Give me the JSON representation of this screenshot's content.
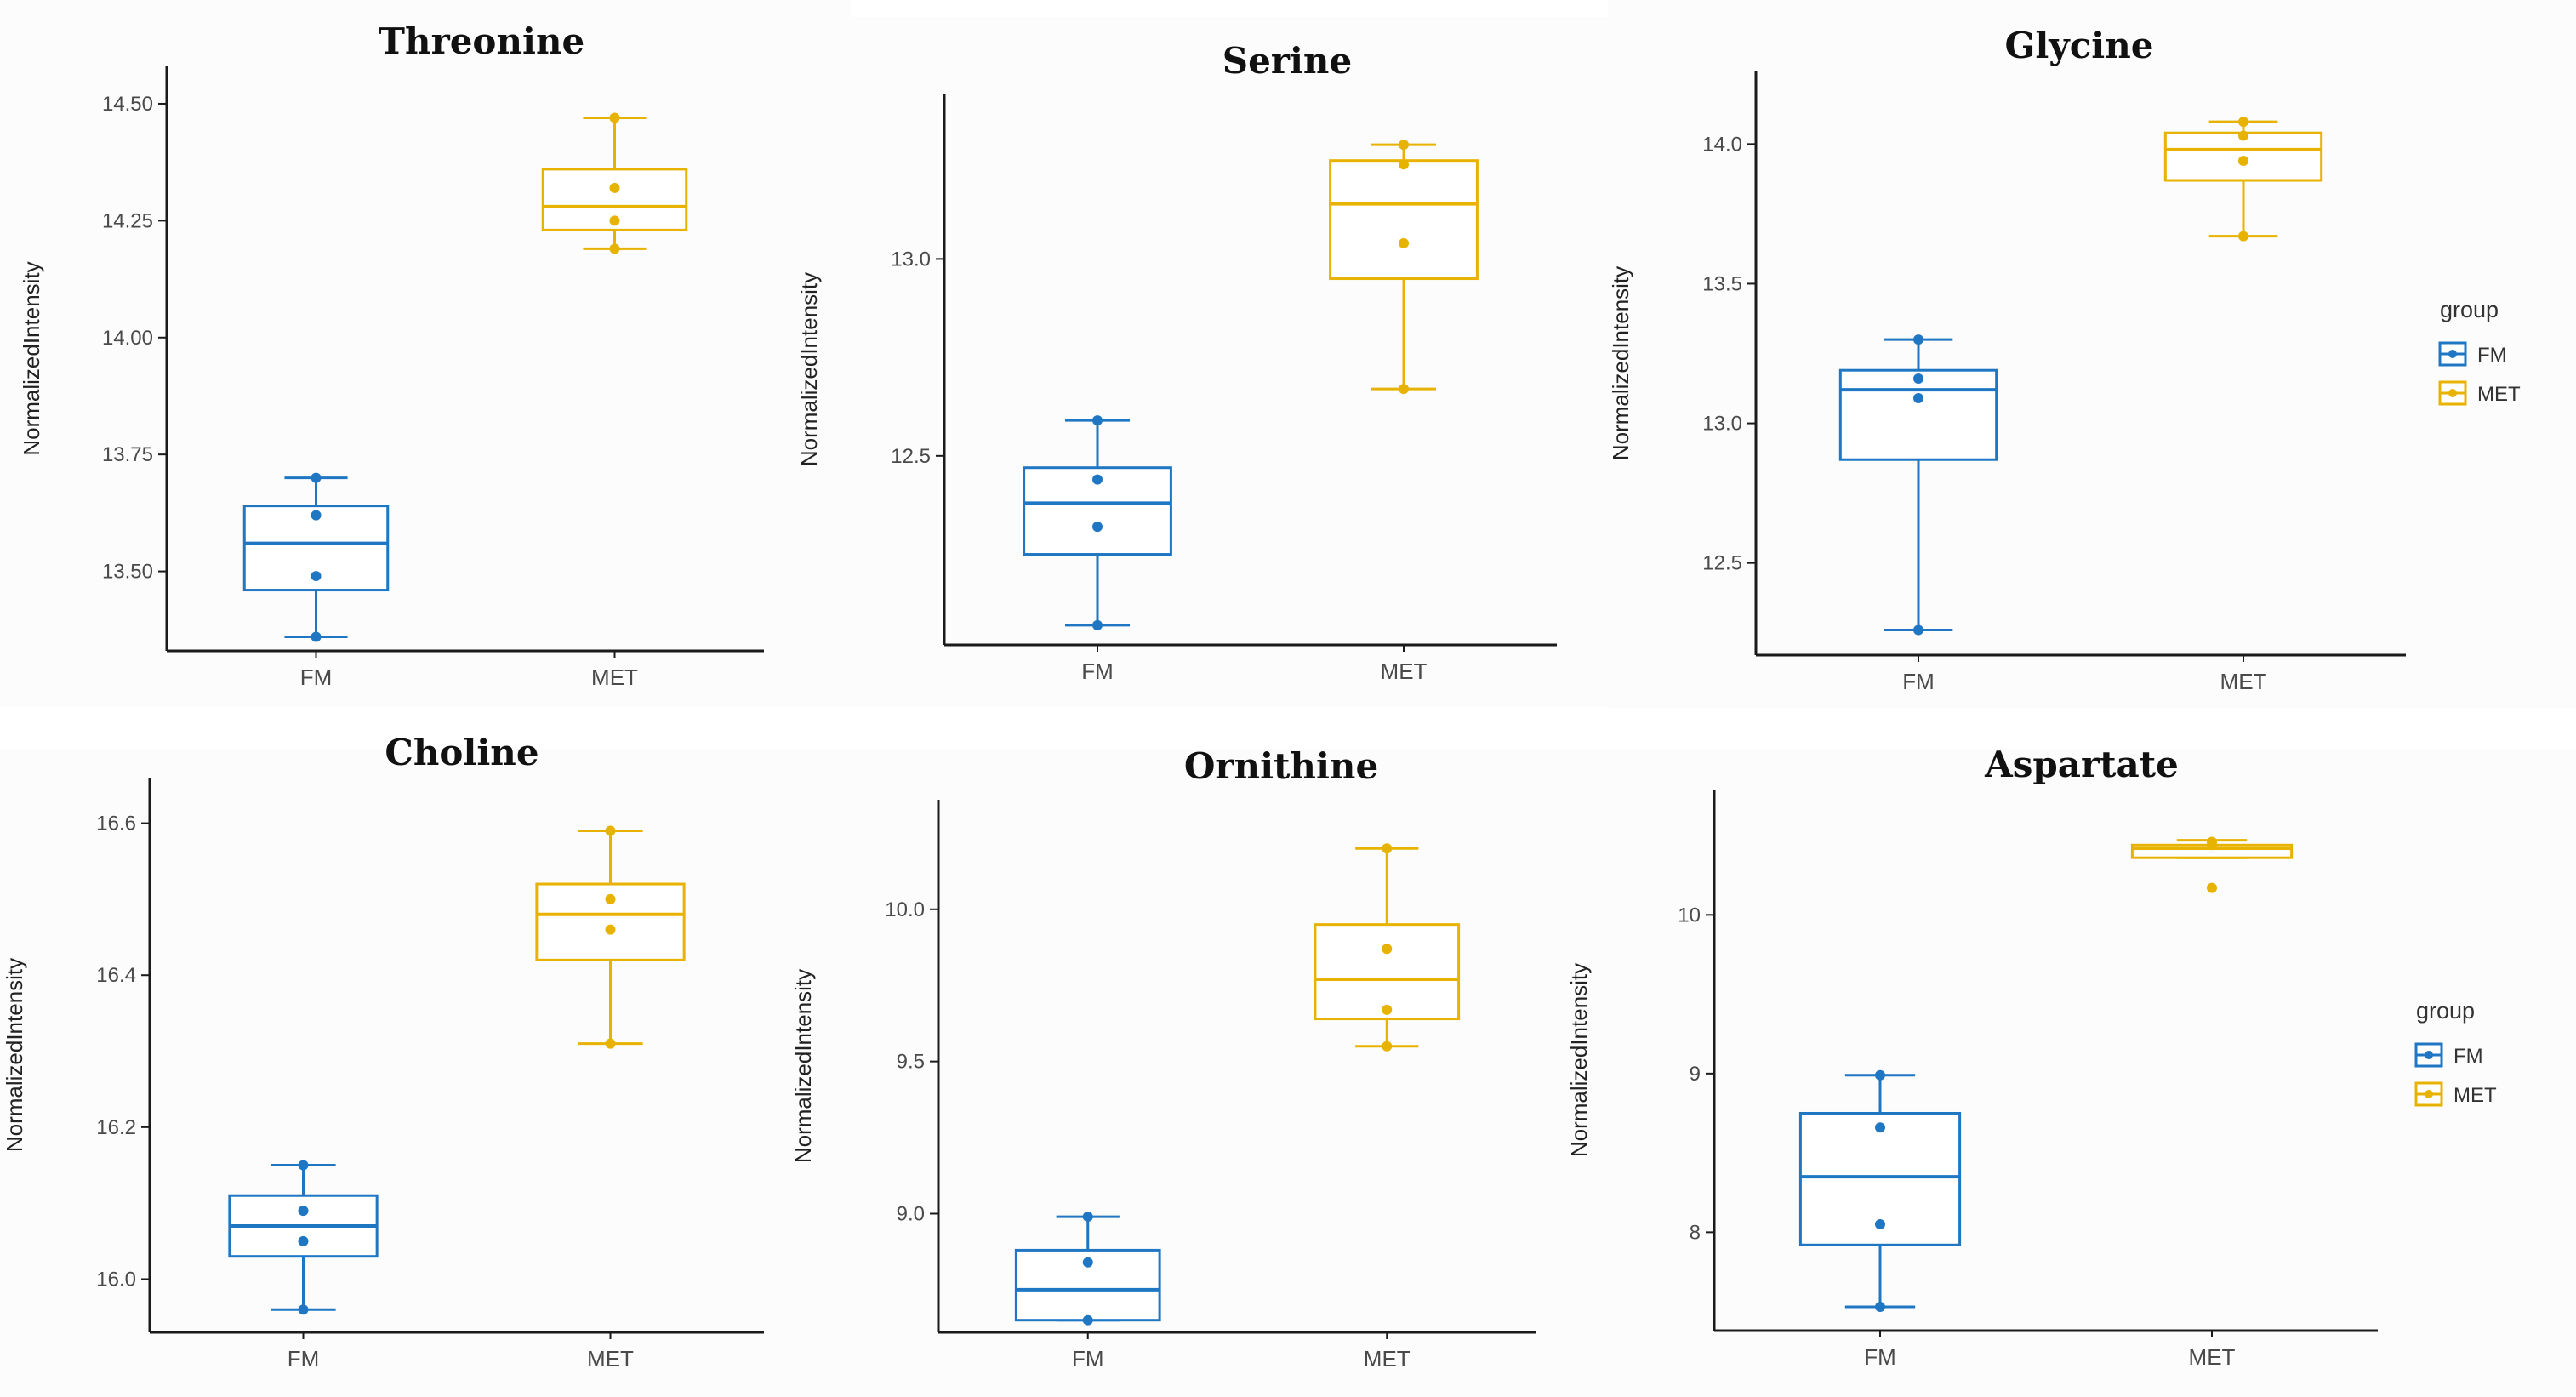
{
  "colors": {
    "FM": "#1f77c4",
    "MET": "#e8b300",
    "axis": "#1a1a1a",
    "panel_bg": "#fcfcfc"
  },
  "legend": {
    "title": "group",
    "entries": [
      "FM",
      "MET"
    ]
  },
  "chart_data": [
    {
      "type": "box",
      "title": "Threonine",
      "ylabel": "NormalizedIntensity",
      "categories": [
        "FM",
        "MET"
      ],
      "ylim": [
        13.33,
        14.58
      ],
      "yticks": [
        "13.50",
        "13.75",
        "14.00",
        "14.25",
        "14.50"
      ],
      "series": [
        {
          "name": "FM",
          "whisker_low": 13.36,
          "q1": 13.46,
          "median": 13.56,
          "q3": 13.64,
          "whisker_high": 13.7,
          "points": [
            13.36,
            13.49,
            13.62,
            13.7
          ]
        },
        {
          "name": "MET",
          "whisker_low": 14.19,
          "q1": 14.23,
          "median": 14.28,
          "q3": 14.36,
          "whisker_high": 14.47,
          "points": [
            14.19,
            14.25,
            14.32,
            14.47
          ]
        }
      ]
    },
    {
      "type": "box",
      "title": "Serine",
      "ylabel": "NormalizedIntensity",
      "categories": [
        "FM",
        "MET"
      ],
      "ylim": [
        12.02,
        13.42
      ],
      "yticks": [
        "12.5",
        "13.0"
      ],
      "series": [
        {
          "name": "FM",
          "whisker_low": 12.07,
          "q1": 12.25,
          "median": 12.38,
          "q3": 12.47,
          "whisker_high": 12.59,
          "points": [
            12.07,
            12.32,
            12.44,
            12.59
          ]
        },
        {
          "name": "MET",
          "whisker_low": 12.67,
          "q1": 12.95,
          "median": 13.14,
          "q3": 13.25,
          "whisker_high": 13.29,
          "points": [
            12.67,
            13.04,
            13.24,
            13.29
          ]
        }
      ]
    },
    {
      "type": "box",
      "title": "Glycine",
      "ylabel": "NormalizedIntensity",
      "categories": [
        "FM",
        "MET"
      ],
      "ylim": [
        12.17,
        14.26
      ],
      "yticks": [
        "12.5",
        "13.0",
        "13.5",
        "14.0"
      ],
      "series": [
        {
          "name": "FM",
          "whisker_low": 12.26,
          "q1": 12.87,
          "median": 13.12,
          "q3": 13.19,
          "whisker_high": 13.3,
          "points": [
            12.26,
            13.09,
            13.16,
            13.3
          ]
        },
        {
          "name": "MET",
          "whisker_low": 13.67,
          "q1": 13.87,
          "median": 13.98,
          "q3": 14.04,
          "whisker_high": 14.08,
          "points": [
            13.67,
            13.94,
            14.03,
            14.08
          ]
        }
      ]
    },
    {
      "type": "box",
      "title": "Choline",
      "ylabel": "NormalizedIntensity",
      "categories": [
        "FM",
        "MET"
      ],
      "ylim": [
        15.93,
        16.66
      ],
      "yticks": [
        "16.0",
        "16.2",
        "16.4",
        "16.6"
      ],
      "series": [
        {
          "name": "FM",
          "whisker_low": 15.96,
          "q1": 16.03,
          "median": 16.07,
          "q3": 16.11,
          "whisker_high": 16.15,
          "points": [
            15.96,
            16.05,
            16.09,
            16.15
          ]
        },
        {
          "name": "MET",
          "whisker_low": 16.31,
          "q1": 16.42,
          "median": 16.48,
          "q3": 16.52,
          "whisker_high": 16.59,
          "points": [
            16.31,
            16.46,
            16.5,
            16.59
          ]
        }
      ]
    },
    {
      "type": "box",
      "title": "Ornithine",
      "ylabel": "NormalizedIntensity",
      "categories": [
        "FM",
        "MET"
      ],
      "ylim": [
        8.61,
        10.36
      ],
      "yticks": [
        "9.0",
        "9.5",
        "10.0"
      ],
      "series": [
        {
          "name": "FM",
          "whisker_low": 8.65,
          "q1": 8.65,
          "median": 8.75,
          "q3": 8.88,
          "whisker_high": 8.99,
          "points": [
            8.65,
            8.84,
            8.99
          ]
        },
        {
          "name": "MET",
          "whisker_low": 9.55,
          "q1": 9.64,
          "median": 9.77,
          "q3": 9.95,
          "whisker_high": 10.2,
          "points": [
            9.55,
            9.67,
            9.87,
            10.2
          ]
        }
      ]
    },
    {
      "type": "box",
      "title": "Aspartate",
      "ylabel": "NormalizedIntensity",
      "categories": [
        "FM",
        "MET"
      ],
      "ylim": [
        7.38,
        10.79
      ],
      "yticks": [
        "8",
        "9",
        "10"
      ],
      "series": [
        {
          "name": "FM",
          "whisker_low": 7.53,
          "q1": 7.92,
          "median": 8.35,
          "q3": 8.75,
          "whisker_high": 8.99,
          "points": [
            7.53,
            8.05,
            8.66,
            8.99
          ]
        },
        {
          "name": "MET",
          "whisker_low": 10.36,
          "q1": 10.36,
          "median": 10.42,
          "q3": 10.44,
          "whisker_high": 10.47,
          "points": [
            10.17,
            10.44,
            10.46
          ]
        }
      ]
    }
  ]
}
